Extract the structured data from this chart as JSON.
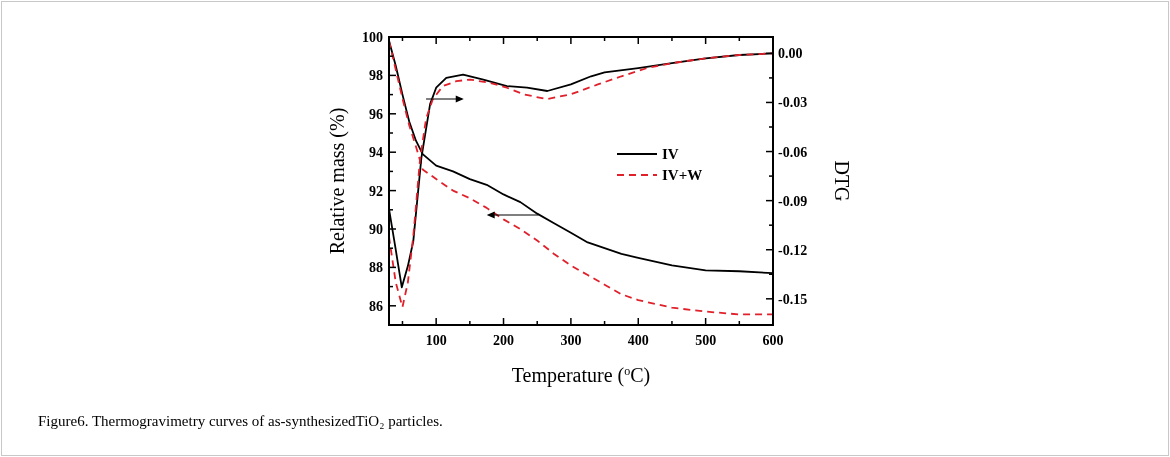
{
  "chart_data": {
    "type": "line",
    "xlabel": "Temperature ($^{o}$C)",
    "ylabel": "Relative mass (%)",
    "y2label": "DTG",
    "xlim": [
      30,
      600
    ],
    "xticks": [
      {
        "value": 50,
        "label": null
      },
      100,
      {
        "value": 150,
        "label": null
      },
      200,
      {
        "value": 250,
        "label": null
      },
      300,
      {
        "value": 350,
        "label": null
      },
      400,
      {
        "value": 450,
        "label": null
      },
      500,
      {
        "value": 550,
        "label": null
      },
      600
    ],
    "ylim": [
      85,
      100
    ],
    "yticks": [
      86,
      {
        "value": 87,
        "label": null
      },
      88,
      {
        "value": 89,
        "label": null
      },
      90,
      {
        "value": 91,
        "label": null
      },
      92,
      {
        "value": 93,
        "label": null
      },
      94,
      {
        "value": 95,
        "label": null
      },
      96,
      {
        "value": 97,
        "label": null
      },
      98,
      {
        "value": 99,
        "label": null
      },
      100
    ],
    "y2lim": [
      -0.166,
      0.01
    ],
    "y2ticks": [
      {
        "value": -0.15,
        "label": "-0.15"
      },
      {
        "value": -0.135,
        "label": null
      },
      {
        "value": -0.12,
        "label": "-0.12"
      },
      {
        "value": -0.105,
        "label": null
      },
      {
        "value": -0.09,
        "label": "-0.09"
      },
      {
        "value": -0.075,
        "label": null
      },
      {
        "value": -0.06,
        "label": "-0.06"
      },
      {
        "value": -0.045,
        "label": null
      },
      {
        "value": -0.03,
        "label": "-0.03"
      },
      {
        "value": -0.015,
        "label": null
      },
      {
        "value": 0,
        "label": "0.00"
      }
    ],
    "grid": false,
    "legend": "right",
    "series": [
      {
        "name": "IV",
        "color": "#000000",
        "line_style": "solid",
        "x": [
          30,
          40,
          50,
          60,
          70,
          80,
          100,
          125,
          150,
          175,
          200,
          225,
          250,
          275,
          300,
          325,
          350,
          375,
          400,
          450,
          500,
          550,
          600
        ],
        "values": [
          99.8,
          98.5,
          97.0,
          95.6,
          94.6,
          93.9,
          93.3,
          93.0,
          92.6,
          92.3,
          91.8,
          91.4,
          90.8,
          90.3,
          89.8,
          89.3,
          89.0,
          88.7,
          88.5,
          88.1,
          87.85,
          87.8,
          87.7
        ]
      },
      {
        "name": "IV+W",
        "color": "#e0212b",
        "line_style": "dashed",
        "x": [
          30,
          40,
          50,
          60,
          70,
          80,
          100,
          125,
          150,
          175,
          200,
          225,
          250,
          275,
          300,
          325,
          350,
          375,
          400,
          450,
          500,
          550,
          600
        ],
        "values": [
          99.8,
          98.3,
          96.8,
          95.4,
          94.3,
          93.1,
          92.6,
          92.0,
          91.6,
          91.1,
          90.5,
          90.0,
          89.4,
          88.7,
          88.1,
          87.6,
          87.1,
          86.6,
          86.3,
          85.9,
          85.7,
          85.55,
          85.55
        ]
      },
      {
        "color": "#000000",
        "line_style": "solid",
        "axis": "y2",
        "x": [
          30,
          40,
          49,
          58,
          66,
          78,
          91,
          100,
          115,
          140,
          170,
          205,
          235,
          265,
          300,
          330,
          350,
          400,
          450,
          500,
          550,
          600
        ],
        "values": [
          -0.095,
          -0.12,
          -0.143,
          -0.13,
          -0.115,
          -0.064,
          -0.031,
          -0.021,
          -0.015,
          -0.013,
          -0.016,
          -0.02,
          -0.021,
          -0.023,
          -0.019,
          -0.014,
          -0.0116,
          -0.009,
          -0.006,
          -0.003,
          -0.001,
          0
        ]
      },
      {
        "color": "#e0212b",
        "line_style": "dashed",
        "axis": "y2",
        "x": [
          30,
          40,
          50,
          58,
          66,
          76,
          85,
          95,
          110,
          130,
          150,
          180,
          205,
          230,
          264,
          300,
          340,
          375,
          413,
          450,
          500,
          550,
          600
        ],
        "values": [
          -0.112,
          -0.14,
          -0.155,
          -0.14,
          -0.112,
          -0.065,
          -0.04,
          -0.028,
          -0.02,
          -0.017,
          -0.016,
          -0.018,
          -0.021,
          -0.025,
          -0.028,
          -0.025,
          -0.019,
          -0.014,
          -0.009,
          -0.006,
          -0.003,
          -0.001,
          0
        ]
      }
    ],
    "annotations": [
      "Figure6. Thermogravimetry curves of as-synthesizedTiO₂ particles."
    ]
  }
}
